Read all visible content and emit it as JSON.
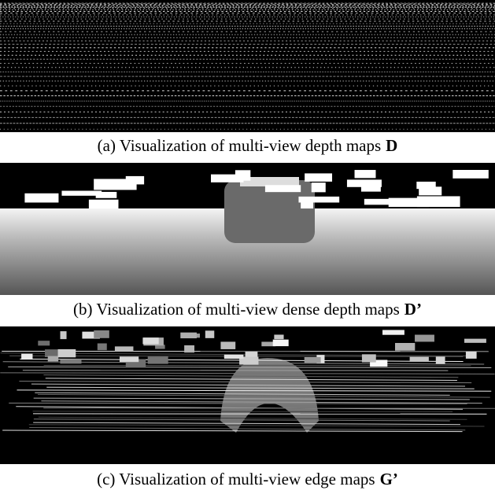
{
  "panels": [
    {
      "caption": "(a) Visualization of multi-view depth maps",
      "symbol": "D"
    },
    {
      "caption": "(b) Visualization of multi-view dense depth maps",
      "symbol": "D’"
    },
    {
      "caption": "(c) Visualization of multi-view edge maps",
      "symbol": "G’"
    }
  ]
}
